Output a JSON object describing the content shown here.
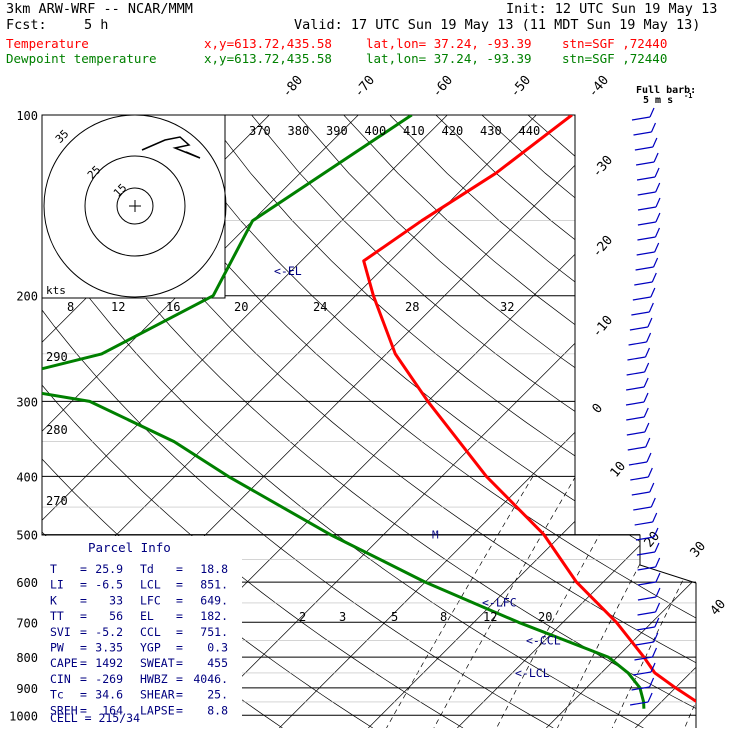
{
  "header": {
    "model": "3km ARW-WRF -- NCAR/MMM",
    "init": "Init: 12 UTC Sun 19 May 13",
    "fcst_label": "Fcst:",
    "fcst_value": "5 h",
    "valid": "Valid: 17 UTC Sun 19 May 13 (11 MDT Sun 19 May 13)",
    "temp_label": "Temperature",
    "dew_label": "Dewpoint temperature",
    "xy": "x,y=613.72,435.58",
    "latlon": "lat,lon= 37.24, -93.39",
    "stn": "stn=SGF ,72440"
  },
  "colors": {
    "temperature": "#ff0000",
    "dewpoint": "#008000",
    "axes": "#000000",
    "annot": "#000080",
    "wind": "#0000c0"
  },
  "barb_legend": {
    "line1": "Full barb:",
    "line2": "5 m s"
  },
  "hodograph": {
    "units": "kts",
    "ring_labels": [
      "35",
      "25",
      "15"
    ]
  },
  "chart_data": {
    "type": "line",
    "pressure_levels": [
      100,
      200,
      300,
      400,
      500,
      600,
      700,
      800,
      900,
      1000
    ],
    "skewed_temp_labels": [
      "-80",
      "-70",
      "-60",
      "-50",
      "-40",
      "-30",
      "-20",
      "-10",
      "0",
      "10",
      "20",
      "30",
      "40"
    ],
    "theta_labels_top": [
      "370",
      "380",
      "390",
      "400",
      "410",
      "420",
      "430",
      "440"
    ],
    "theta_labels_left": [
      "290",
      "280",
      "270"
    ],
    "mixing_labels_top": [
      "8",
      "12",
      "16",
      "20",
      "24",
      "28",
      "32"
    ],
    "mixing_labels_low": [
      "2",
      "3",
      "5",
      "8",
      "12",
      "20"
    ],
    "series": [
      {
        "name": "Temperature",
        "points": [
          [
            100,
            -56
          ],
          [
            125,
            -58
          ],
          [
            150,
            -61
          ],
          [
            175,
            -63
          ],
          [
            200,
            -58
          ],
          [
            250,
            -49
          ],
          [
            300,
            -40
          ],
          [
            400,
            -25
          ],
          [
            500,
            -12
          ],
          [
            600,
            -3
          ],
          [
            700,
            6
          ],
          [
            800,
            13
          ],
          [
            850,
            16
          ],
          [
            900,
            20
          ],
          [
            950,
            24
          ],
          [
            975,
            26
          ]
        ]
      },
      {
        "name": "Dewpoint temperature",
        "points": [
          [
            100,
            -74
          ],
          [
            150,
            -80
          ],
          [
            200,
            -76
          ],
          [
            250,
            -82
          ],
          [
            280,
            -92
          ],
          [
            300,
            -78
          ],
          [
            350,
            -64
          ],
          [
            400,
            -54
          ],
          [
            500,
            -36
          ],
          [
            600,
            -20
          ],
          [
            700,
            -5
          ],
          [
            800,
            9
          ],
          [
            850,
            13
          ],
          [
            900,
            16
          ],
          [
            950,
            18
          ],
          [
            975,
            18.8
          ]
        ]
      }
    ],
    "annotations": [
      {
        "label": "<-EL",
        "pressure": 182
      },
      {
        "label": "<-LFC",
        "pressure": 649
      },
      {
        "label": "<-CCL",
        "pressure": 751
      },
      {
        "label": "<-LCL",
        "pressure": 851
      }
    ]
  },
  "parcel": {
    "title": "Parcel Info",
    "rows": [
      [
        "T",
        "=",
        "25.9",
        "Td",
        "=",
        "18.8"
      ],
      [
        "LI",
        "=",
        "-6.5",
        "LCL",
        "=",
        "851."
      ],
      [
        "K",
        "=",
        "33",
        "LFC",
        "=",
        "649."
      ],
      [
        "TT",
        "=",
        "56",
        "EL",
        "=",
        "182."
      ],
      [
        "SVI",
        "=",
        "-5.2",
        "CCL",
        "=",
        "751."
      ],
      [
        "PW",
        "=",
        "3.35",
        "YGP",
        "=",
        "0.3"
      ],
      [
        "CAPE",
        "=",
        "1492",
        "SWEAT",
        "=",
        "455"
      ],
      [
        "CIN",
        "=",
        "-269",
        "HWBZ",
        "=",
        "4046."
      ],
      [
        "Tc",
        "=",
        "34.6",
        "SHEAR",
        "=",
        "25."
      ],
      [
        "SREH",
        "=",
        "164",
        "LAPSE",
        "=",
        "8.8"
      ]
    ],
    "cell": "CELL = 215/34"
  }
}
